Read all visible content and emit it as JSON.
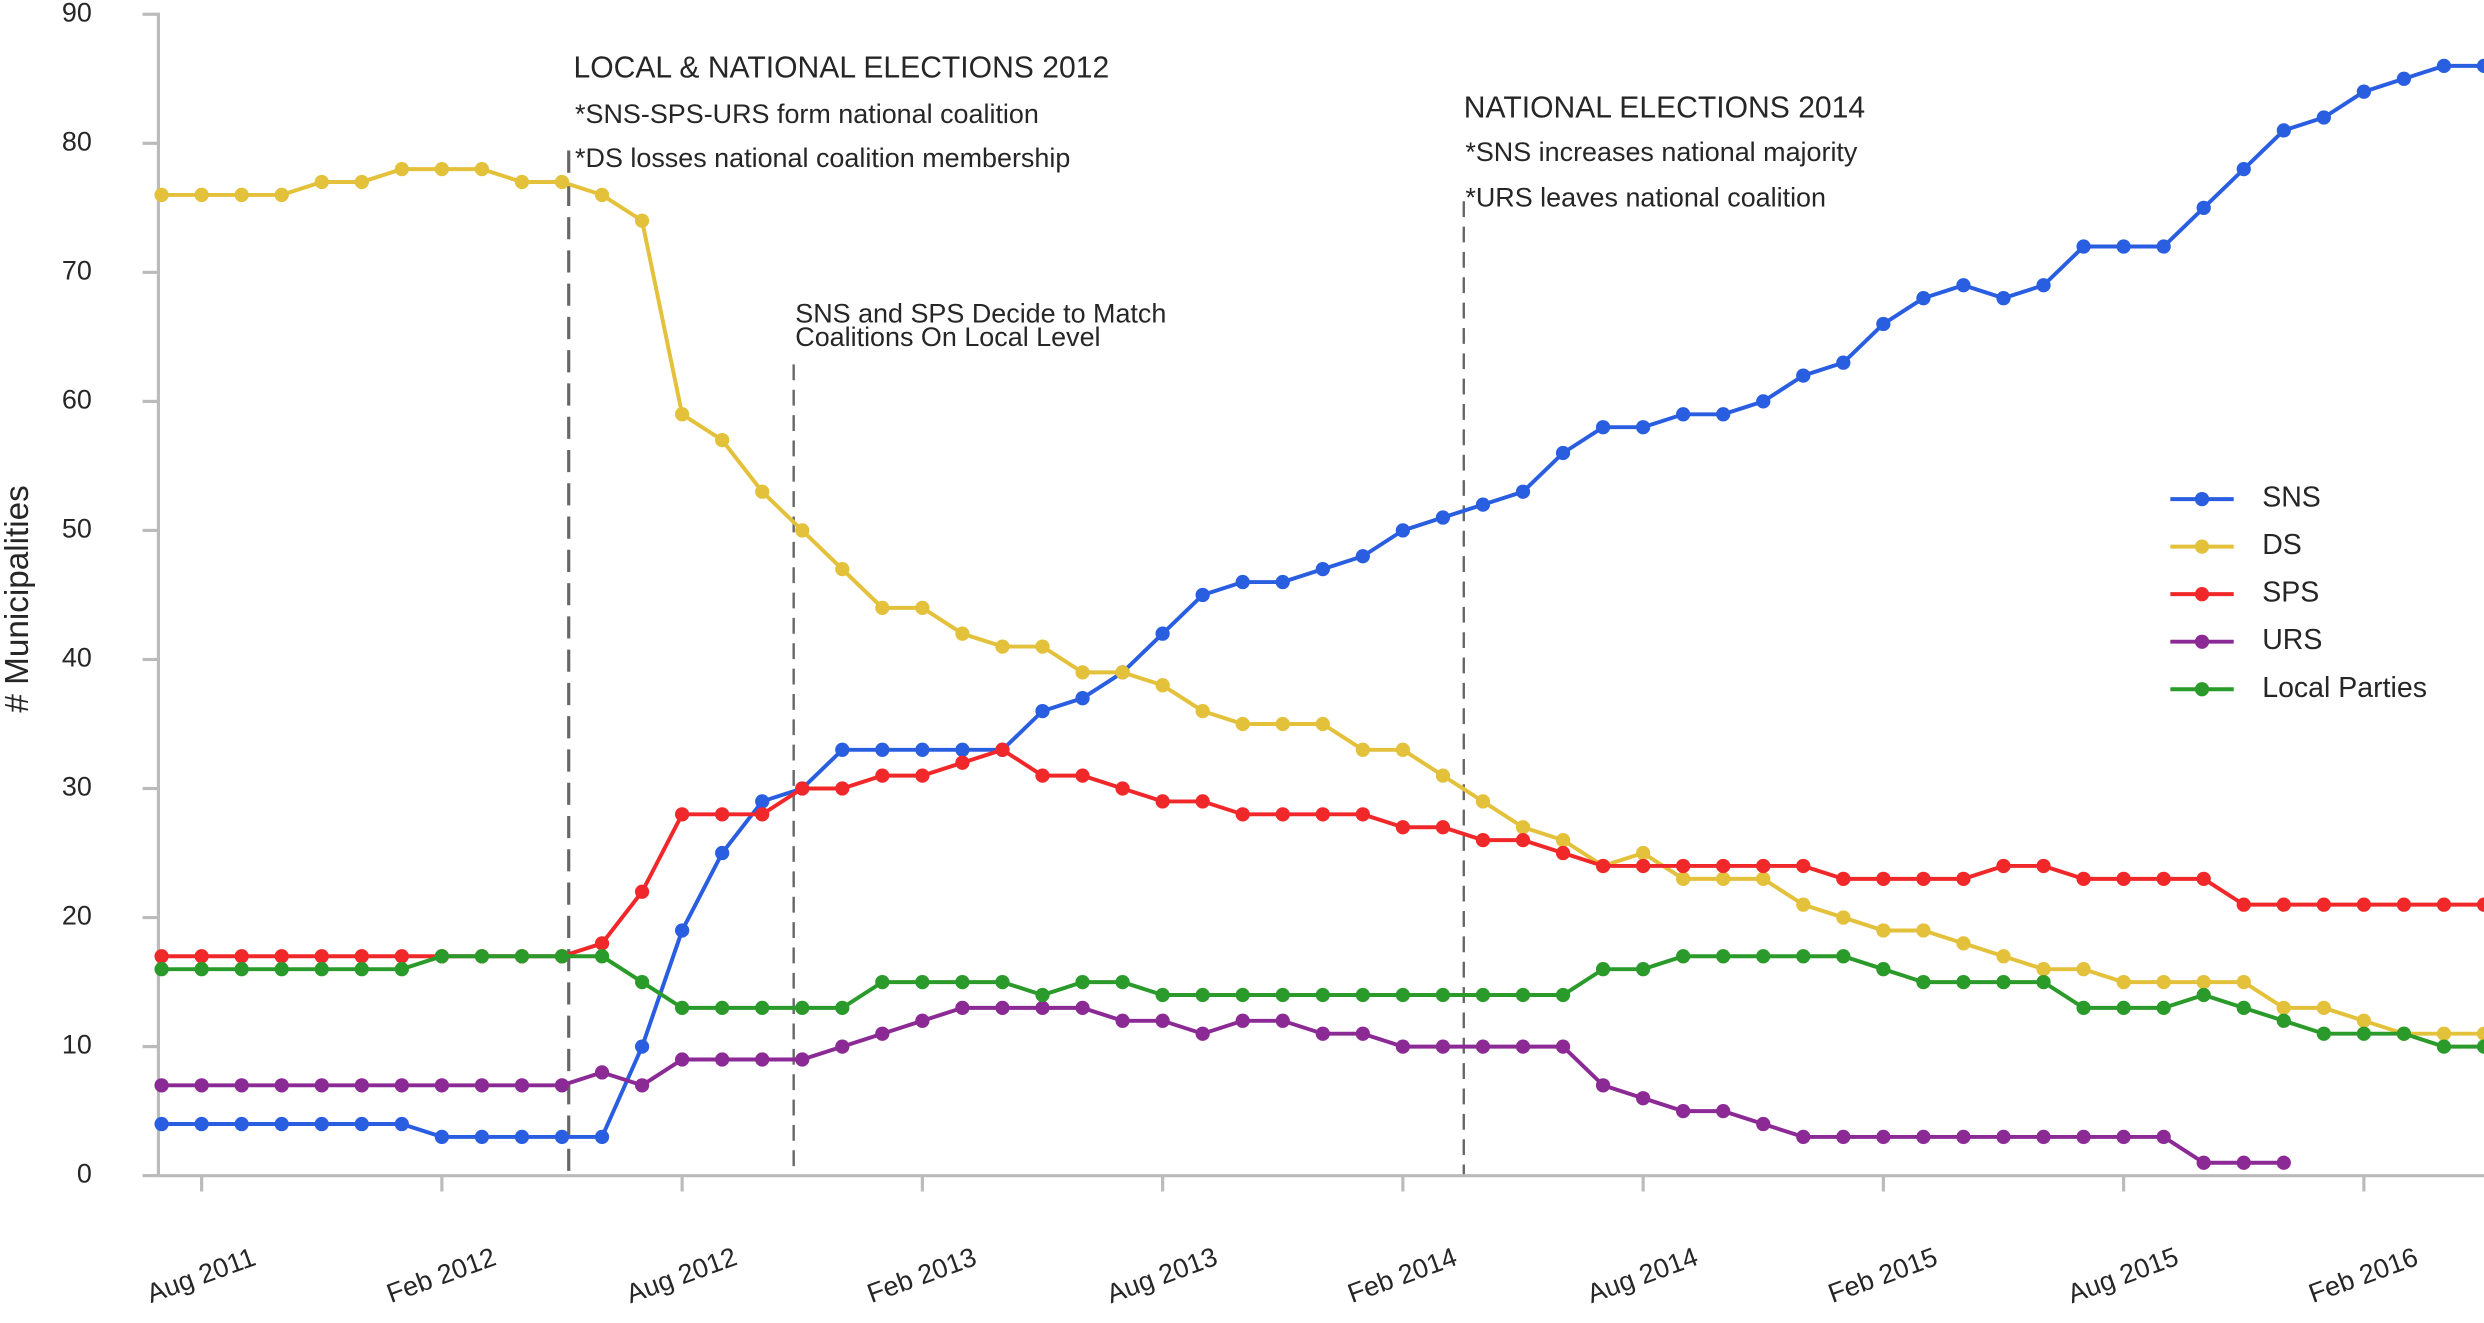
{
  "chart_data": {
    "type": "line",
    "ylabel": "# Municipalities",
    "x": [
      "2011-07",
      "2011-08",
      "2011-09",
      "2011-10",
      "2011-11",
      "2011-12",
      "2012-01",
      "2012-02",
      "2012-03",
      "2012-04",
      "2012-05",
      "2012-06",
      "2012-07",
      "2012-08",
      "2012-09",
      "2012-10",
      "2012-11",
      "2012-12",
      "2013-01",
      "2013-02",
      "2013-03",
      "2013-04",
      "2013-05",
      "2013-06",
      "2013-07",
      "2013-08",
      "2013-09",
      "2013-10",
      "2013-11",
      "2013-12",
      "2014-01",
      "2014-02",
      "2014-03",
      "2014-04",
      "2014-05",
      "2014-06",
      "2014-07",
      "2014-08",
      "2014-09",
      "2014-10",
      "2014-11",
      "2014-12",
      "2015-01",
      "2015-02",
      "2015-03",
      "2015-04",
      "2015-05",
      "2015-06",
      "2015-07",
      "2015-08",
      "2015-09",
      "2015-10",
      "2015-11",
      "2015-12",
      "2016-01",
      "2016-02",
      "2016-03",
      "2016-04",
      "2016-05"
    ],
    "series": [
      {
        "name": "SNS",
        "color": "#2a5ee0",
        "values": [
          4,
          4,
          4,
          4,
          4,
          4,
          4,
          3,
          3,
          3,
          3,
          3,
          10,
          19,
          25,
          29,
          30,
          33,
          33,
          33,
          33,
          33,
          36,
          37,
          39,
          42,
          45,
          46,
          46,
          47,
          48,
          50,
          51,
          52,
          53,
          56,
          58,
          58,
          59,
          59,
          60,
          62,
          63,
          66,
          68,
          69,
          68,
          69,
          72,
          72,
          72,
          75,
          78,
          81,
          82,
          84,
          85,
          86,
          86
        ]
      },
      {
        "name": "DS",
        "color": "#e3c13b",
        "values": [
          76,
          76,
          76,
          76,
          77,
          77,
          78,
          78,
          78,
          77,
          77,
          76,
          74,
          59,
          57,
          53,
          50,
          47,
          44,
          44,
          42,
          41,
          41,
          39,
          39,
          38,
          36,
          35,
          35,
          35,
          33,
          33,
          31,
          29,
          27,
          26,
          24,
          25,
          23,
          23,
          23,
          21,
          20,
          19,
          19,
          18,
          17,
          16,
          16,
          15,
          15,
          15,
          15,
          13,
          13,
          12,
          11,
          11,
          11
        ]
      },
      {
        "name": "SPS",
        "color": "#f0282a",
        "values": [
          17,
          17,
          17,
          17,
          17,
          17,
          17,
          17,
          17,
          17,
          17,
          18,
          22,
          28,
          28,
          28,
          30,
          30,
          31,
          31,
          32,
          33,
          31,
          31,
          30,
          29,
          29,
          28,
          28,
          28,
          28,
          27,
          27,
          26,
          26,
          25,
          24,
          24,
          24,
          24,
          24,
          24,
          23,
          23,
          23,
          23,
          24,
          24,
          23,
          23,
          23,
          23,
          21,
          21,
          21,
          21,
          21,
          21,
          21
        ]
      },
      {
        "name": "URS",
        "color": "#8b2a94",
        "values": [
          7,
          7,
          7,
          7,
          7,
          7,
          7,
          7,
          7,
          7,
          7,
          8,
          7,
          9,
          9,
          9,
          9,
          10,
          11,
          12,
          13,
          13,
          13,
          13,
          12,
          12,
          11,
          12,
          12,
          11,
          11,
          10,
          10,
          10,
          10,
          10,
          7,
          6,
          5,
          5,
          4,
          3,
          3,
          3,
          3,
          3,
          3,
          3,
          3,
          3,
          3,
          1,
          1,
          1,
          null,
          null,
          null,
          null,
          null
        ]
      },
      {
        "name": "Local Parties",
        "color": "#2a9a2a",
        "values": [
          16,
          16,
          16,
          16,
          16,
          16,
          16,
          17,
          17,
          17,
          17,
          17,
          15,
          13,
          13,
          13,
          13,
          13,
          15,
          15,
          15,
          15,
          14,
          15,
          15,
          14,
          14,
          14,
          14,
          14,
          14,
          14,
          14,
          14,
          14,
          14,
          16,
          16,
          17,
          17,
          17,
          17,
          17,
          16,
          15,
          15,
          15,
          15,
          13,
          13,
          13,
          14,
          13,
          12,
          11,
          11,
          11,
          10,
          10
        ]
      }
    ],
    "xlim": [
      "2011-07",
      "2016-05"
    ],
    "xticks": [
      {
        "value": "2011-08",
        "label": "Aug 2011"
      },
      {
        "value": "2012-02",
        "label": "Feb 2012"
      },
      {
        "value": "2012-08",
        "label": "Aug 2012"
      },
      {
        "value": "2013-02",
        "label": "Feb 2013"
      },
      {
        "value": "2013-08",
        "label": "Aug 2013"
      },
      {
        "value": "2014-02",
        "label": "Feb 2014"
      },
      {
        "value": "2014-08",
        "label": "Aug 2014"
      },
      {
        "value": "2015-02",
        "label": "Feb 2015"
      },
      {
        "value": "2015-08",
        "label": "Aug 2015"
      },
      {
        "value": "2016-02",
        "label": "Feb 2016"
      }
    ],
    "ylim": [
      0,
      90
    ],
    "yticks": [
      0,
      10,
      20,
      30,
      40,
      50,
      60,
      70,
      80,
      90
    ],
    "grid": false,
    "legend": "right",
    "annotations": [
      {
        "title": "LOCAL & NATIONAL ELECTIONS 2012",
        "lines": [
          "*SNS-SPS-URS form national coalition",
          "*DS losses national coalition membership"
        ]
      },
      {
        "title": "",
        "lines": [
          "SNS and SPS Decide to Match",
          "Coalitions On Local Level"
        ]
      },
      {
        "title": "NATIONAL ELECTIONS 2014",
        "lines": [
          "*SNS increases national majority",
          "*URS leaves national coalition"
        ]
      }
    ]
  }
}
